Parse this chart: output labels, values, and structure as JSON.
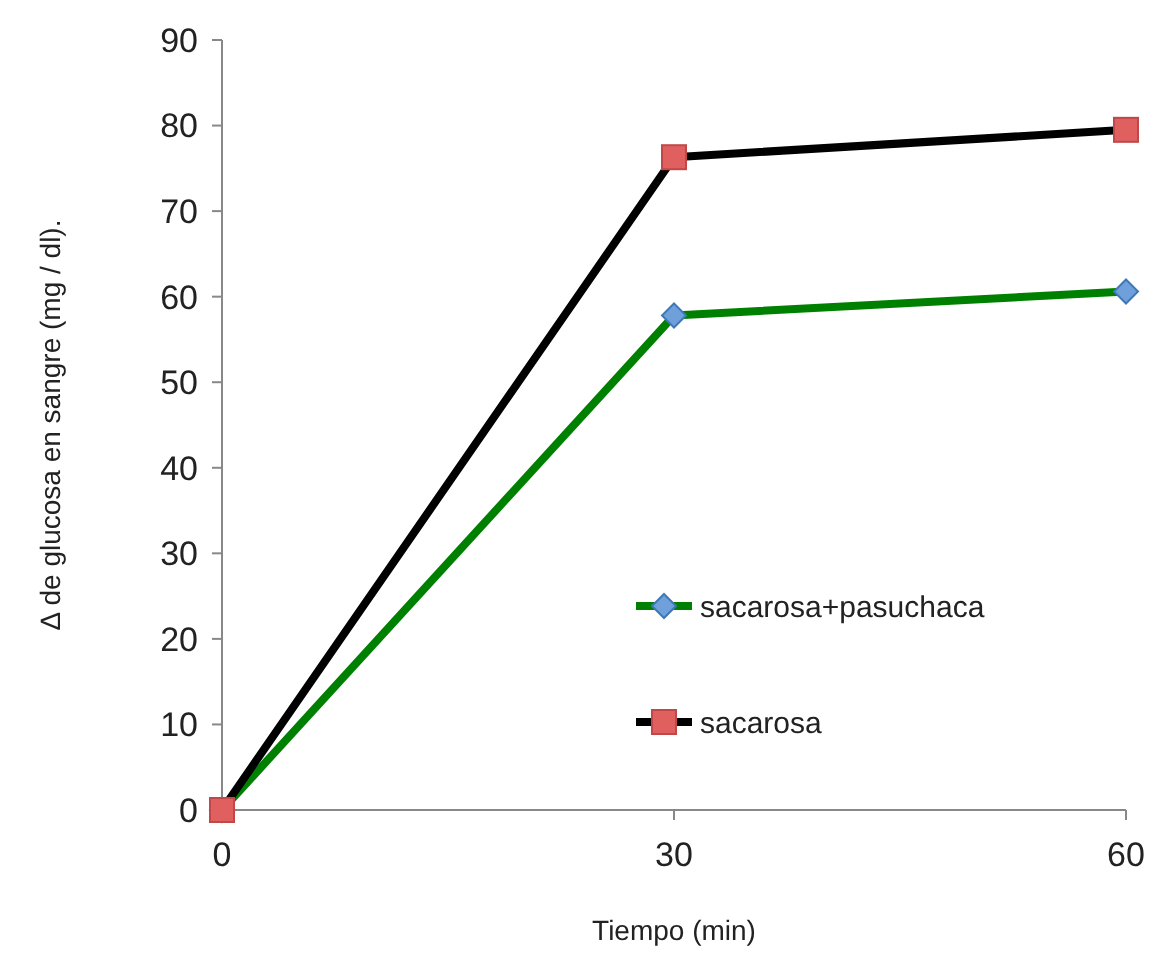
{
  "chart_data": {
    "type": "line",
    "xlabel": "Tiempo (min)",
    "ylabel": "Δ de  glucosa en sangre (mg / dl).",
    "x": [
      0,
      30,
      60
    ],
    "xlim": [
      0,
      60
    ],
    "xticks": [
      0,
      30,
      60
    ],
    "ylim": [
      0,
      90
    ],
    "yticks": [
      0,
      10,
      20,
      30,
      40,
      50,
      60,
      70,
      80,
      90
    ],
    "grid": false,
    "legend": "bottom right",
    "series": [
      {
        "name": "sacarosa+pasuchaca",
        "color": "#008000",
        "marker": "diamond",
        "values": [
          0,
          57.8,
          60.6
        ]
      },
      {
        "name": "sacarosa",
        "color": "#000000",
        "marker": "square",
        "values": [
          0,
          76.3,
          79.5
        ]
      }
    ]
  }
}
